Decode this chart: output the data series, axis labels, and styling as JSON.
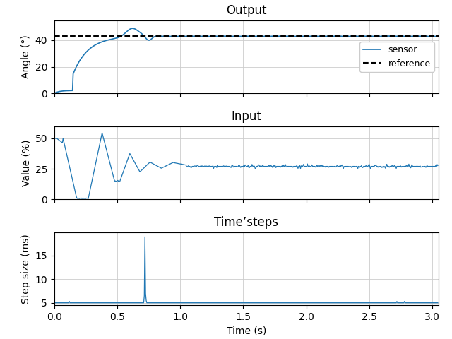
{
  "title_output": "Output",
  "title_input": "Input",
  "title_timesteps": "Time’steps",
  "xlabel": "Time (s)",
  "ylabel_output": "Angle (°)",
  "ylabel_input": "Value (%)",
  "ylabel_timesteps": "Step size (ms)",
  "reference": 43.0,
  "legend_sensor": "sensor",
  "legend_reference": "reference",
  "line_color": "#1f77b4",
  "ref_color": "black",
  "figsize": [
    6.4,
    4.8
  ],
  "dpi": 100,
  "output_ylim": [
    0,
    55
  ],
  "output_yticks": [
    0,
    20,
    40
  ],
  "input_ylim": [
    0,
    60
  ],
  "input_yticks": [
    0,
    25,
    50
  ],
  "step_ylim": [
    4.5,
    20
  ],
  "step_yticks": [
    5,
    10,
    15
  ],
  "xlim": [
    0.0,
    3.05
  ]
}
